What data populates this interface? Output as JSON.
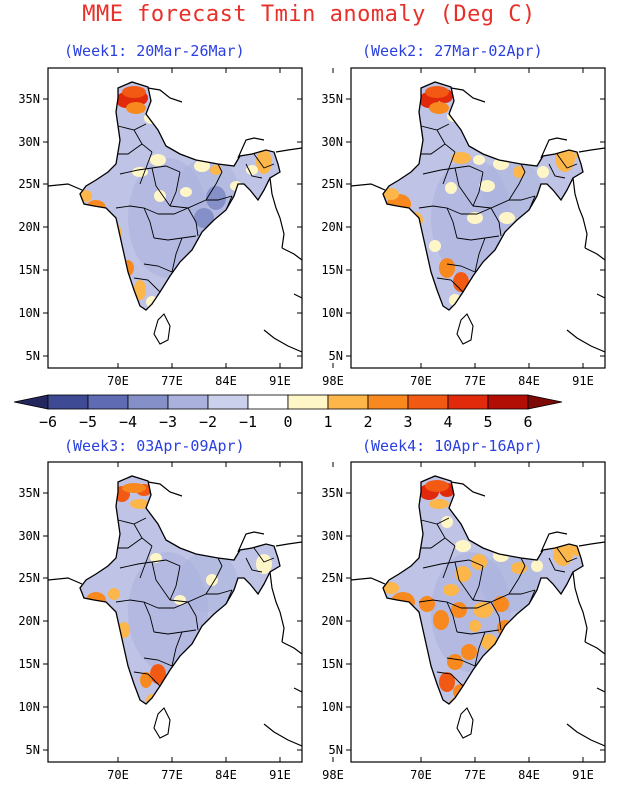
{
  "title": "MME forecast Tmin anomaly (Deg C)",
  "panels": [
    {
      "title": "(Week1: 20Mar-26Mar)"
    },
    {
      "title": "(Week2: 27Mar-02Apr)"
    },
    {
      "title": "(Week3: 03Apr-09Apr)"
    },
    {
      "title": "(Week4: 10Apr-16Apr)"
    }
  ],
  "lat_labels": [
    "35N",
    "30N",
    "25N",
    "20N",
    "15N",
    "10N",
    "5N"
  ],
  "lon_labels": [
    "70E",
    "77E",
    "84E",
    "91E",
    "98E"
  ],
  "colorbar": {
    "labels": [
      "−6",
      "−5",
      "−4",
      "−3",
      "−2",
      "−1",
      "0",
      "1",
      "2",
      "3",
      "4",
      "5",
      "6"
    ],
    "colors": [
      "#23275e",
      "#3e4a93",
      "#5f6bb2",
      "#8690c8",
      "#aab1dc",
      "#cbd0ec",
      "#ffffff",
      "#fff6c8",
      "#fcb64a",
      "#f7891e",
      "#f25a14",
      "#e12a0c",
      "#b30e06",
      "#7d0a07"
    ]
  }
}
